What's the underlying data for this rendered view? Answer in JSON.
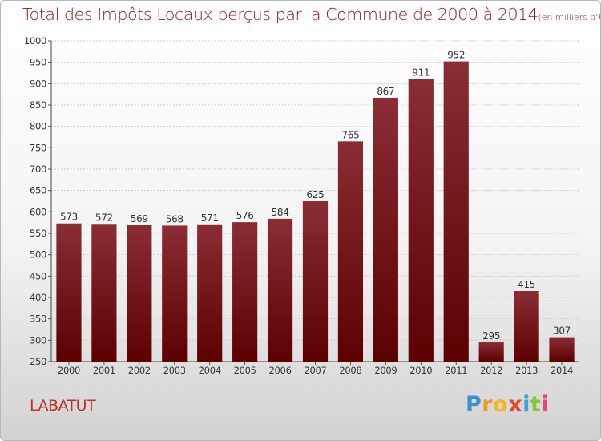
{
  "chart_data": {
    "type": "bar",
    "title": "Total des Impôts Locaux perçus par la Commune de 2000 à 2014",
    "unit": "(en milliers d'€)",
    "categories": [
      "2000",
      "2001",
      "2002",
      "2003",
      "2004",
      "2005",
      "2006",
      "2007",
      "2008",
      "2009",
      "2010",
      "2011",
      "2012",
      "2013",
      "2014"
    ],
    "values": [
      573,
      572,
      569,
      568,
      571,
      576,
      584,
      625,
      765,
      867,
      911,
      952,
      295,
      415,
      307
    ],
    "ylim": [
      250,
      1000
    ],
    "yticks": [
      250,
      300,
      350,
      400,
      450,
      500,
      550,
      600,
      650,
      700,
      750,
      800,
      850,
      900,
      950,
      1000
    ],
    "grid": true,
    "bar_color_top": "#8a2d35",
    "bar_color_bottom": "#5c0000"
  },
  "commune": "LABATUT",
  "logo": [
    "P",
    "r",
    "o",
    "x",
    "i",
    "t",
    "i"
  ]
}
